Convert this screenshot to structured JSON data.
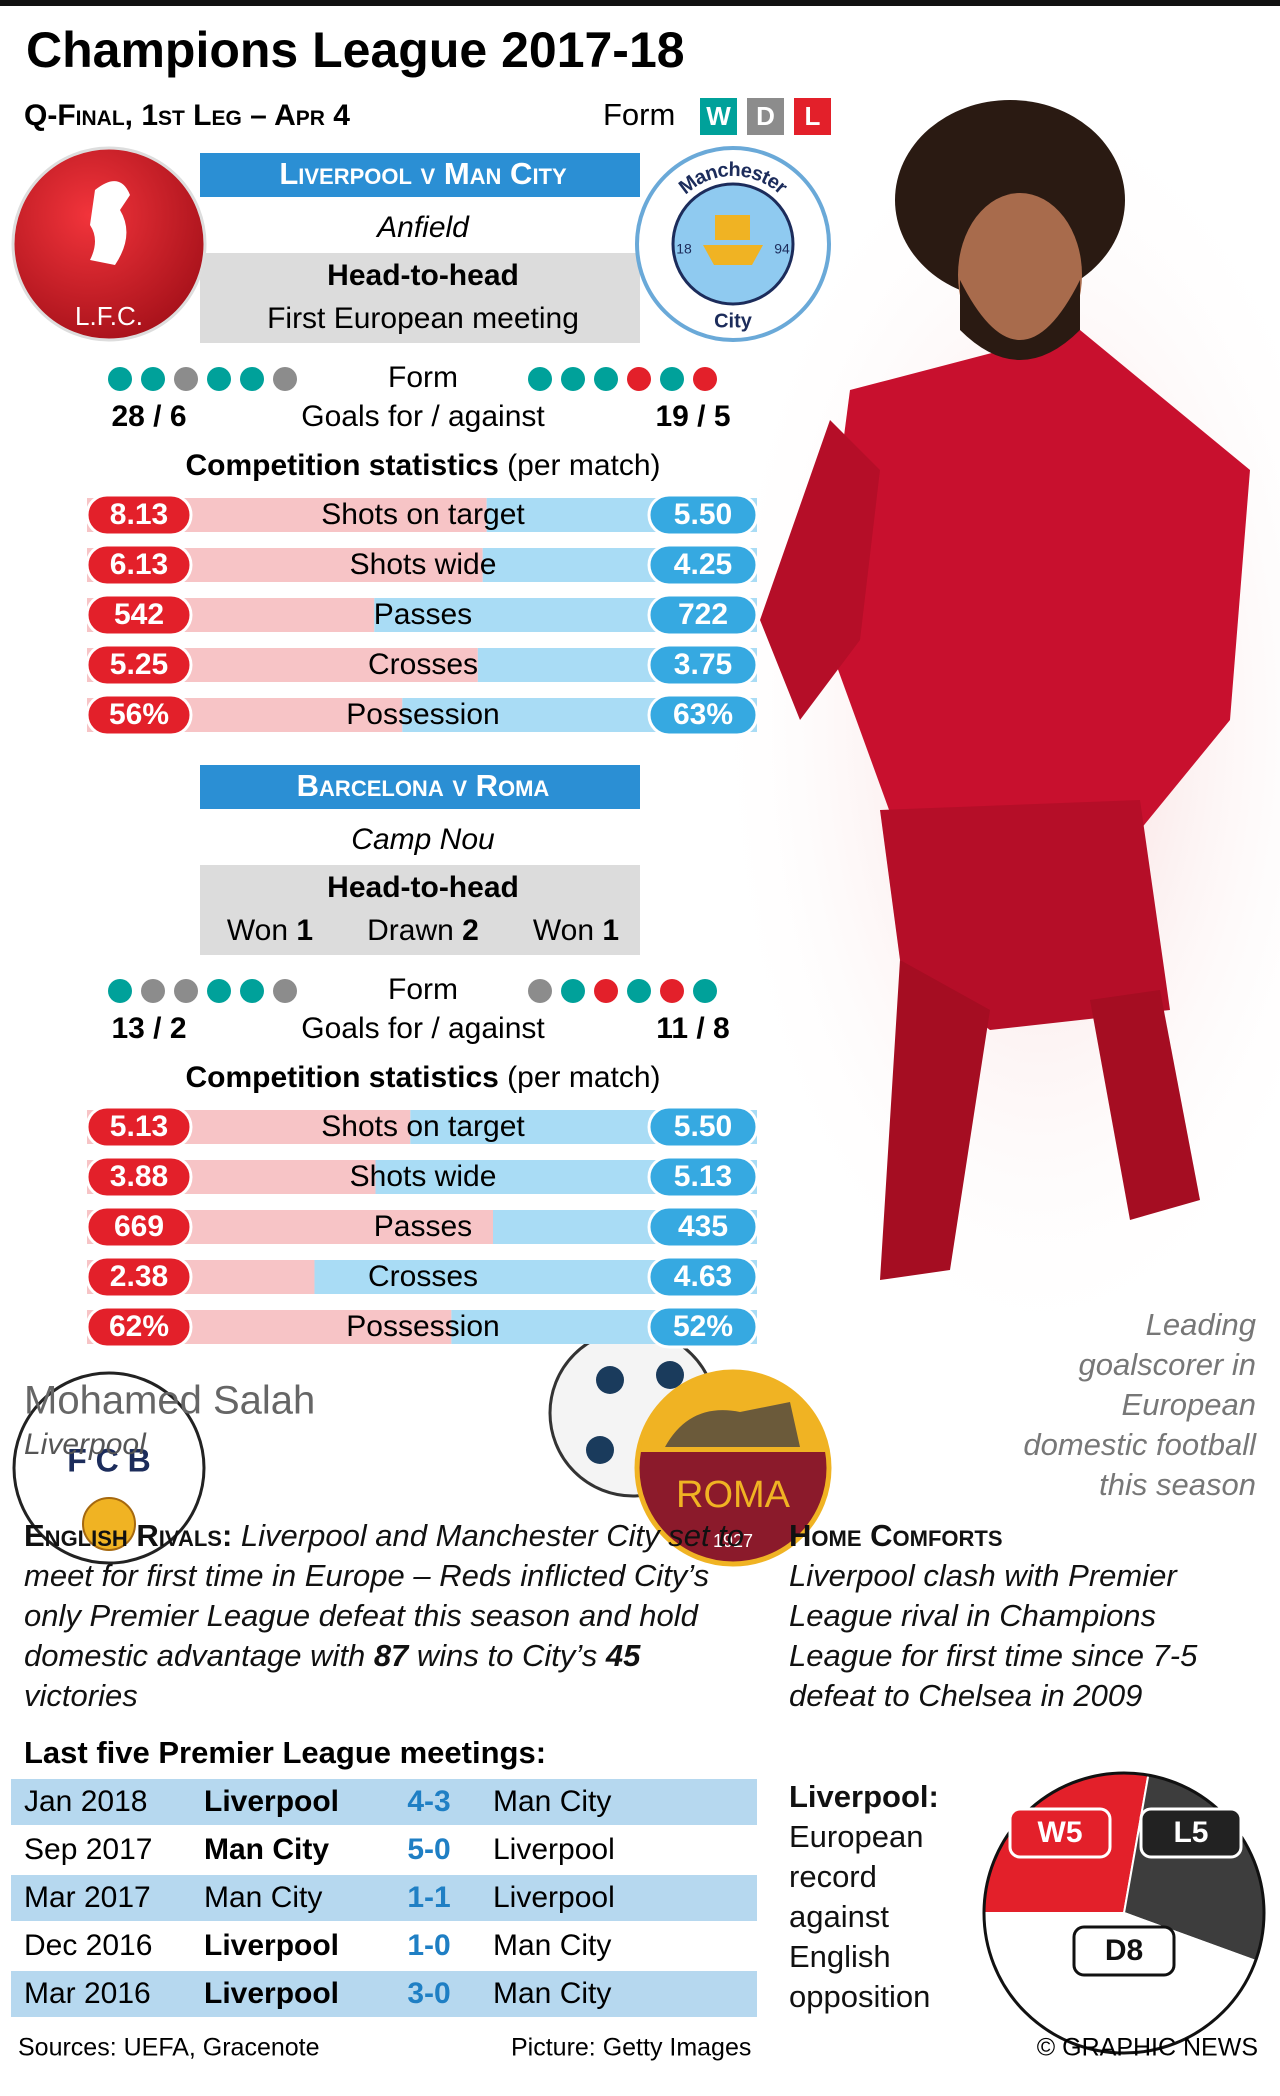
{
  "header": {
    "title": "Champions League 2017-18",
    "subtitle": "Q-Final, 1st Leg – Apr 4",
    "form_label": "Form",
    "form_keys": [
      "W",
      "D",
      "L"
    ],
    "form_colors": [
      "#00a19a",
      "#8c8c8c",
      "#e3202a"
    ]
  },
  "matches": [
    {
      "title": "Liverpool v Man City",
      "venue": "Anfield",
      "h2h_label": "Head-to-head",
      "h2h_text": "First European meeting",
      "home_badge": [
        "L.F.C."
      ],
      "away_badge": [
        "Manchester",
        "18",
        "94",
        "City"
      ],
      "form_label": "Form",
      "home_form": [
        "W",
        "W",
        "D",
        "W",
        "W",
        "D"
      ],
      "away_form": [
        "W",
        "W",
        "W",
        "L",
        "W",
        "L"
      ],
      "home_goals": "28 / 6",
      "goals_label": "Goals for / against",
      "away_goals": "19 / 5",
      "stats_title": "Competition statistics",
      "stats_note": "(per match)",
      "stats": [
        {
          "label": "Shots on target",
          "home": 8.13,
          "away": 5.5,
          "away_label": "5.50"
        },
        {
          "label": "Shots wide",
          "home": 6.13,
          "away": 4.25
        },
        {
          "label": "Passes",
          "home": 542,
          "away": 722
        },
        {
          "label": "Crosses",
          "home": 5.25,
          "away": 3.75
        },
        {
          "label": "Possession",
          "home": 56,
          "home_label": "56%",
          "away": 63,
          "away_label": "63%"
        }
      ]
    },
    {
      "title": "Barcelona v Roma",
      "venue": "Camp Nou",
      "h2h_label": "Head-to-head",
      "h2h_results": [
        {
          "label": "Won",
          "value": 1
        },
        {
          "label": "Drawn",
          "value": 2
        },
        {
          "label": "Won",
          "value": 1
        }
      ],
      "home_badge": [
        "F C B"
      ],
      "away_badge": [
        "ROMA",
        "1927"
      ],
      "form_label": "Form",
      "home_form": [
        "W",
        "D",
        "D",
        "W",
        "W",
        "D"
      ],
      "away_form": [
        "D",
        "W",
        "L",
        "W",
        "L",
        "W"
      ],
      "home_goals": "13 / 2",
      "goals_label": "Goals for / against",
      "away_goals": "11 / 8",
      "stats_title": "Competition statistics",
      "stats_note": "(per match)",
      "stats": [
        {
          "label": "Shots on target",
          "home": 5.13,
          "away": 5.5,
          "away_label": "5.50"
        },
        {
          "label": "Shots wide",
          "home": 3.88,
          "away": 5.13
        },
        {
          "label": "Passes",
          "home": 669,
          "away": 435
        },
        {
          "label": "Crosses",
          "home": 2.38,
          "away": 4.63
        },
        {
          "label": "Possession",
          "home": 62,
          "home_label": "62%",
          "away": 52,
          "away_label": "52%"
        }
      ]
    }
  ],
  "player": {
    "name": "Mohamed Salah",
    "club": "Liverpool",
    "caption": "Leading goalscorer in European domestic football this season"
  },
  "rivals": {
    "heading": "English Rivals:",
    "text_1": "Liverpool and Manchester City set to meet for first time in Europe – Reds inflicted City’s only Premier League defeat this season and hold domestic advantage with ",
    "home_wins": 87,
    "text_2": " wins to City’s ",
    "away_wins": 45,
    "text_3": " victories"
  },
  "meetings": {
    "title": "Last five Premier League meetings:",
    "rows": [
      {
        "date": "Jan 2018",
        "home": "Liverpool",
        "score": "4-3",
        "away": "Man City",
        "bold_home": true
      },
      {
        "date": "Sep 2017",
        "home": "Man City",
        "score": "5-0",
        "away": "Liverpool",
        "bold_home": true
      },
      {
        "date": "Mar 2017",
        "home": "Man City",
        "score": "1-1",
        "away": "Liverpool",
        "bold_home": false
      },
      {
        "date": "Dec 2016",
        "home": "Liverpool",
        "score": "1-0",
        "away": "Man City",
        "bold_home": true
      },
      {
        "date": "Mar 2016",
        "home": "Liverpool",
        "score": "3-0",
        "away": "Man City",
        "bold_home": true
      }
    ]
  },
  "home_comforts": {
    "heading": "Home Comforts",
    "text": "Liverpool clash with Premier League rival in Champions League for first time since 7-5 defeat to Chelsea in 2009"
  },
  "record": {
    "title": "Liverpool:",
    "text": "European record against English opposition",
    "pie": {
      "type": "pie",
      "values": [
        5,
        5,
        8
      ],
      "value_labels": [
        "W5",
        "L5",
        "D8"
      ],
      "colors": [
        "#e3202a",
        "#3d3d3d",
        "#ffffff"
      ]
    }
  },
  "footer": {
    "sources": "Sources: UEFA, Gracenote",
    "picture": "Picture: Getty Images",
    "copyright": "© GRAPHIC NEWS"
  }
}
